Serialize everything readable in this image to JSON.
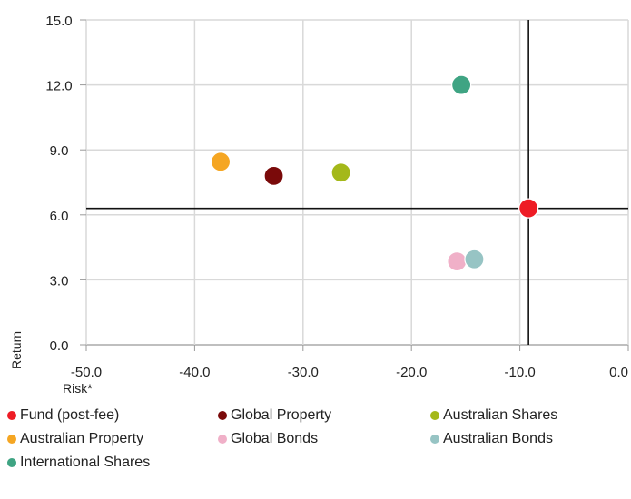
{
  "chart_data": {
    "type": "scatter",
    "title": "",
    "xlabel": "Risk*",
    "ylabel": "Return",
    "xlim": [
      -50,
      0
    ],
    "ylim": [
      0,
      15
    ],
    "xticks": [
      "-50.0",
      "-40.0",
      "-30.0",
      "-20.0",
      "-10.0",
      "0.0"
    ],
    "yticks": [
      "0.0",
      "3.0",
      "6.0",
      "9.0",
      "12.0",
      "15.0"
    ],
    "grid": true,
    "legend_position": "bottom",
    "reference_lines": {
      "x": -9.2,
      "y": 6.3
    },
    "series": [
      {
        "name": "Fund (post-fee)",
        "color": "#ee1c25",
        "x": -9.2,
        "y": 6.3
      },
      {
        "name": "Global Property",
        "color": "#7a0a0a",
        "x": -32.7,
        "y": 7.8
      },
      {
        "name": "Australian Shares",
        "color": "#a4b81a",
        "x": -26.5,
        "y": 7.95
      },
      {
        "name": "Australian Property",
        "color": "#f5a623",
        "x": -37.6,
        "y": 8.45
      },
      {
        "name": "Global Bonds",
        "color": "#f0b0c8",
        "x": -15.8,
        "y": 3.85
      },
      {
        "name": "Australian Bonds",
        "color": "#97c4c4",
        "x": -14.2,
        "y": 3.95
      },
      {
        "name": "International Shares",
        "color": "#3fa483",
        "x": -15.4,
        "y": 12.0
      }
    ]
  }
}
